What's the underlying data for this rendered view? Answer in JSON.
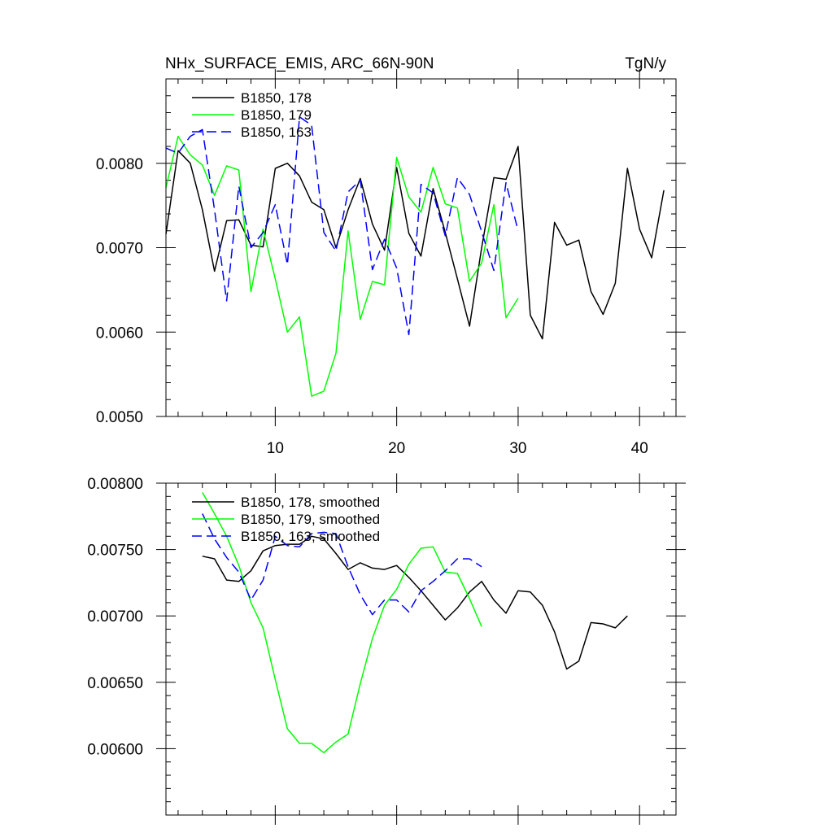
{
  "header": {
    "left": "NHx_SURFACE_EMIS, ARC_66N-90N",
    "right": "TgN/y"
  },
  "chart_data": [
    {
      "type": "line",
      "xlim": [
        1,
        43
      ],
      "ylim": [
        0.005,
        0.009
      ],
      "xticks": [
        10,
        20,
        30,
        40
      ],
      "xtick_labels": [
        "10",
        "20",
        "30",
        "40"
      ],
      "yticks": [
        0.005,
        0.006,
        0.007,
        0.008
      ],
      "ytick_labels": [
        "0.0050",
        "0.0060",
        "0.0070",
        "0.0080"
      ],
      "legend_position": "top-left",
      "series": [
        {
          "name": "B1850, 178",
          "color": "#000000",
          "dash": "solid",
          "x": [
            1,
            2,
            3,
            4,
            5,
            6,
            7,
            8,
            9,
            10,
            11,
            12,
            13,
            14,
            15,
            16,
            17,
            18,
            19,
            20,
            21,
            22,
            23,
            24,
            25,
            26,
            27,
            28,
            29,
            30,
            31,
            32,
            33,
            34,
            35,
            36,
            37,
            38,
            39,
            40,
            41,
            42
          ],
          "y": [
            0.00716,
            0.00815,
            0.008,
            0.00745,
            0.00672,
            0.00732,
            0.00733,
            0.00703,
            0.00701,
            0.00794,
            0.008,
            0.00785,
            0.00754,
            0.00745,
            0.007,
            0.00745,
            0.00782,
            0.00728,
            0.00697,
            0.00795,
            0.00717,
            0.0069,
            0.0077,
            0.00718,
            0.00663,
            0.00607,
            0.007,
            0.00783,
            0.00781,
            0.0082,
            0.0062,
            0.00592,
            0.0073,
            0.00703,
            0.00709,
            0.00648,
            0.00621,
            0.00658,
            0.00794,
            0.00722,
            0.00688,
            0.00768
          ]
        },
        {
          "name": "B1850, 179",
          "color": "#00ff00",
          "dash": "solid",
          "x": [
            1,
            2,
            3,
            4,
            5,
            6,
            7,
            8,
            9,
            10,
            11,
            12,
            13,
            14,
            15,
            16,
            17,
            18,
            19,
            20,
            21,
            22,
            23,
            24,
            25,
            26,
            27,
            28,
            29,
            30
          ],
          "y": [
            0.00771,
            0.00832,
            0.0081,
            0.00798,
            0.00762,
            0.00797,
            0.00792,
            0.00648,
            0.00722,
            0.00663,
            0.006,
            0.00618,
            0.00524,
            0.0053,
            0.00575,
            0.0072,
            0.00615,
            0.0066,
            0.00656,
            0.00807,
            0.0076,
            0.00742,
            0.00795,
            0.00752,
            0.00747,
            0.0066,
            0.00682,
            0.00751,
            0.00617,
            0.0064
          ]
        },
        {
          "name": "B1850, 163",
          "color": "#0000ff",
          "dash": "dashed",
          "x": [
            1,
            2,
            3,
            4,
            5,
            6,
            7,
            8,
            9,
            10,
            11,
            12,
            13,
            14,
            15,
            16,
            17,
            18,
            19,
            20,
            21,
            22,
            23,
            24,
            25,
            26,
            27,
            28,
            29,
            30
          ],
          "y": [
            0.00818,
            0.00812,
            0.00832,
            0.0084,
            0.00745,
            0.00637,
            0.00773,
            0.007,
            0.00718,
            0.00751,
            0.0068,
            0.00855,
            0.00845,
            0.00718,
            0.00696,
            0.00766,
            0.0078,
            0.00674,
            0.0071,
            0.00676,
            0.00597,
            0.00775,
            0.00765,
            0.00714,
            0.00783,
            0.00763,
            0.00719,
            0.00673,
            0.00777,
            0.0072
          ]
        }
      ]
    },
    {
      "type": "line",
      "xlim": [
        1,
        43
      ],
      "ylim": [
        0.0055,
        0.008
      ],
      "xticks": [
        10,
        20,
        30,
        40
      ],
      "yticks": [
        0.006,
        0.0065,
        0.007,
        0.0075,
        0.008
      ],
      "ytick_labels": [
        "0.00600",
        "0.00650",
        "0.00700",
        "0.00750",
        "0.00800"
      ],
      "legend_position": "top-left",
      "series": [
        {
          "name": "B1850, 178, smoothed",
          "color": "#000000",
          "dash": "solid",
          "x": [
            4,
            5,
            6,
            7,
            8,
            9,
            10,
            11,
            12,
            13,
            14,
            15,
            16,
            17,
            18,
            19,
            20,
            21,
            22,
            23,
            24,
            25,
            26,
            27,
            28,
            29,
            30,
            31,
            32,
            33,
            34,
            35,
            36,
            37,
            38,
            39
          ],
          "y": [
            0.00745,
            0.00743,
            0.00727,
            0.00726,
            0.00734,
            0.00749,
            0.00753,
            0.00754,
            0.00754,
            0.0076,
            0.00758,
            0.00747,
            0.00735,
            0.0074,
            0.00736,
            0.00735,
            0.00738,
            0.00729,
            0.00719,
            0.00708,
            0.00697,
            0.00706,
            0.00718,
            0.00726,
            0.00712,
            0.00702,
            0.00719,
            0.00718,
            0.00708,
            0.00688,
            0.0066,
            0.00666,
            0.00695,
            0.00694,
            0.00691,
            0.007
          ]
        },
        {
          "name": "B1850, 179, smoothed",
          "color": "#00ff00",
          "dash": "solid",
          "x": [
            4,
            5,
            6,
            7,
            8,
            9,
            10,
            11,
            12,
            13,
            14,
            15,
            16,
            17,
            18,
            19,
            20,
            21,
            22,
            23,
            24,
            25,
            26,
            27
          ],
          "y": [
            0.00793,
            0.00777,
            0.0076,
            0.00738,
            0.0071,
            0.00691,
            0.00652,
            0.00615,
            0.00604,
            0.00604,
            0.00597,
            0.00605,
            0.00611,
            0.00649,
            0.00683,
            0.00708,
            0.0072,
            0.00739,
            0.00751,
            0.00752,
            0.00733,
            0.00732,
            0.00713,
            0.00692
          ]
        },
        {
          "name": "B1850, 163, smoothed",
          "color": "#0000ff",
          "dash": "dashed",
          "x": [
            4,
            5,
            6,
            7,
            8,
            9,
            10,
            11,
            12,
            13,
            14,
            15,
            16,
            17,
            18,
            19,
            20,
            21,
            22,
            23,
            24,
            25,
            26,
            27
          ],
          "y": [
            0.00777,
            0.00758,
            0.00744,
            0.00733,
            0.00712,
            0.00727,
            0.0076,
            0.00753,
            0.00752,
            0.00762,
            0.00763,
            0.00762,
            0.00737,
            0.00716,
            0.00701,
            0.00712,
            0.00712,
            0.00703,
            0.00719,
            0.00726,
            0.00734,
            0.00743,
            0.00743,
            0.00737
          ]
        }
      ]
    }
  ]
}
